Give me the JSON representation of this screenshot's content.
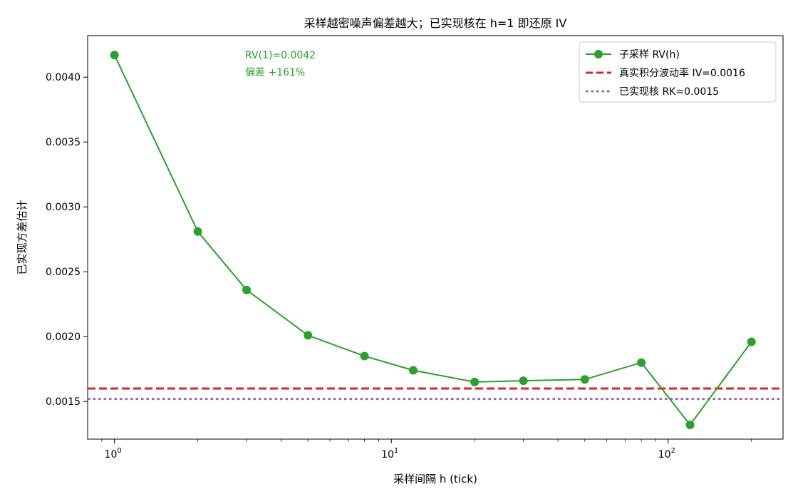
{
  "chart_data": {
    "type": "line",
    "title": "采样越密噪声偏差越大；已实现核在 h=1 即还原 IV",
    "xlabel": "采样间隔 h (tick)",
    "ylabel": "已实现方差估计",
    "x_scale": "log",
    "xlim": [
      0.8,
      260
    ],
    "ylim": [
      0.00121,
      0.00432
    ],
    "x_ticks": [
      {
        "value": 1,
        "base": "10",
        "exp": "0"
      },
      {
        "value": 10,
        "base": "10",
        "exp": "1"
      },
      {
        "value": 100,
        "base": "10",
        "exp": "2"
      }
    ],
    "y_ticks": [
      {
        "value": 0.0015,
        "label": "0.0015"
      },
      {
        "value": 0.002,
        "label": "0.0020"
      },
      {
        "value": 0.0025,
        "label": "0.0025"
      },
      {
        "value": 0.003,
        "label": "0.0030"
      },
      {
        "value": 0.0035,
        "label": "0.0035"
      },
      {
        "value": 0.004,
        "label": "0.0040"
      }
    ],
    "series": [
      {
        "name": "子采样 RV(h)",
        "color": "#2ca02c",
        "x": [
          1,
          2,
          3,
          5,
          8,
          12,
          20,
          30,
          50,
          80,
          120,
          200
        ],
        "y": [
          0.00417,
          0.00281,
          0.00236,
          0.00201,
          0.00185,
          0.00174,
          0.00165,
          0.00166,
          0.00167,
          0.0018,
          0.00132,
          0.00196
        ]
      }
    ],
    "reference_lines": [
      {
        "name": "真实积分波动率 IV=0.0016",
        "y": 0.0016,
        "color": "#d62728",
        "style": "dashed"
      },
      {
        "name": "已实现核 RK=0.0015",
        "y": 0.00152,
        "color": "#9467bd",
        "style": "dotted"
      }
    ],
    "annotations": [
      {
        "lines": [
          "RV(1)=0.0042",
          "偏差 +161%"
        ],
        "color": "#2ca02c",
        "anchor_x": 3
      }
    ],
    "legend": {
      "position": "top-right"
    },
    "grid": false
  }
}
